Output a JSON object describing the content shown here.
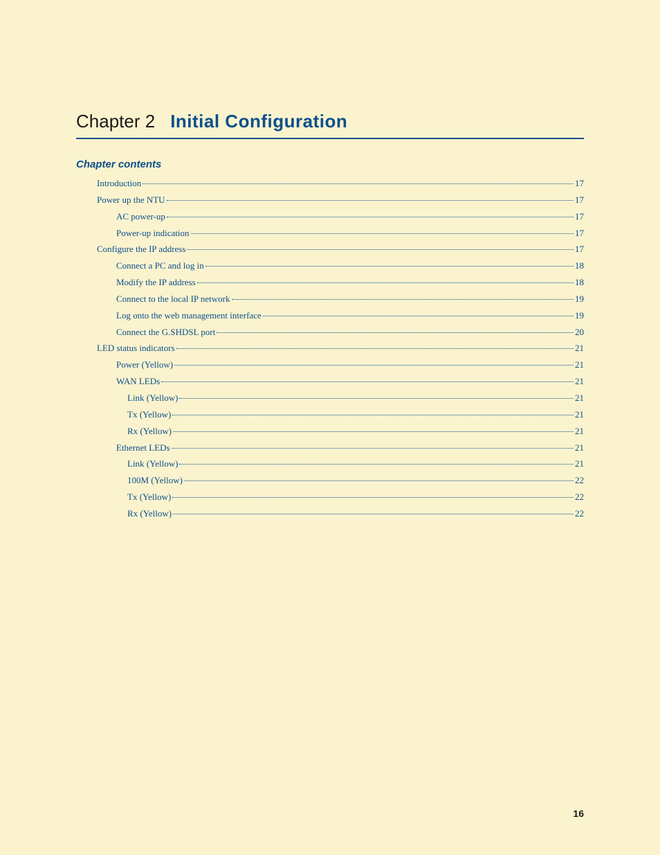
{
  "chapter": {
    "label": "Chapter 2",
    "name": "Initial Configuration",
    "subheading": "Chapter contents"
  },
  "toc": [
    {
      "level": 0,
      "text": "Introduction",
      "page": "17"
    },
    {
      "level": 0,
      "text": "Power up the NTU ",
      "page": "17"
    },
    {
      "level": 1,
      "text": "AC power-up ",
      "page": "17"
    },
    {
      "level": 1,
      "text": "Power-up indication ",
      "page": "17"
    },
    {
      "level": 0,
      "text": "Configure the IP address",
      "page": "17"
    },
    {
      "level": 1,
      "text": "Connect a PC and log in ",
      "page": "18"
    },
    {
      "level": 1,
      "text": "Modify the IP address ",
      "page": "18"
    },
    {
      "level": 1,
      "text": "Connect to the local IP network ",
      "page": "19"
    },
    {
      "level": 1,
      "text": "Log onto the web management interface ",
      "page": "19"
    },
    {
      "level": 1,
      "text": "Connect the G.SHDSL port ",
      "page": "20"
    },
    {
      "level": 0,
      "text": "LED status indicators ",
      "page": "21"
    },
    {
      "level": 1,
      "text": "Power (Yellow) ",
      "page": "21"
    },
    {
      "level": 1,
      "text": "WAN LEDs ",
      "page": "21"
    },
    {
      "level": 2,
      "text": "Link (Yellow) ",
      "page": "21"
    },
    {
      "level": 2,
      "text": "Tx (Yellow) ",
      "page": "21"
    },
    {
      "level": 2,
      "text": "Rx (Yellow) ",
      "page": "21"
    },
    {
      "level": 1,
      "text": "Ethernet LEDs ",
      "page": "21"
    },
    {
      "level": 2,
      "text": "Link (Yellow) ",
      "page": "21"
    },
    {
      "level": 2,
      "text": "100M (Yellow) ",
      "page": "22"
    },
    {
      "level": 2,
      "text": "Tx (Yellow) ",
      "page": "22"
    },
    {
      "level": 2,
      "text": "Rx (Yellow) ",
      "page": "22"
    }
  ],
  "footer": {
    "page_number": "16"
  },
  "colors": {
    "page_bg": "#fbf3ce",
    "link_color": "#0b4f8c",
    "text_dark": "#1a1a1a",
    "rule_color": "#0b4f8c"
  },
  "typography": {
    "chapter_label_fontsize": 26,
    "chapter_name_fontsize": 26,
    "subheading_fontsize": 15,
    "toc_fontsize": 13,
    "footer_fontsize": 14
  }
}
